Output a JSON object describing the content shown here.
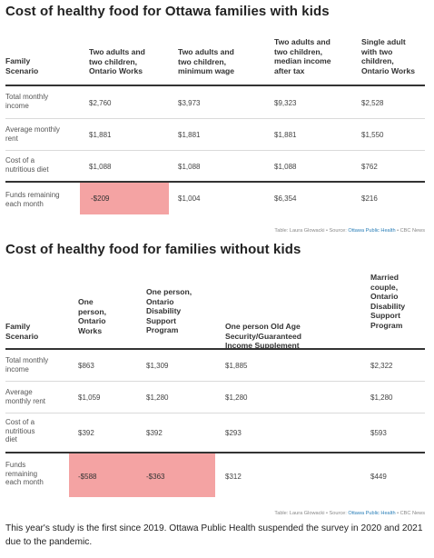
{
  "table1": {
    "title": "Cost of healthy food for Ottawa families with kids",
    "headers": [
      "Family\nScenario",
      "Two adults and\ntwo children,\nOntario Works",
      "Two adults and\ntwo children,\nminimum wage",
      "Two adults and\ntwo children,\nmedian income\nafter tax",
      "Single adult\nwith two\nchildren,\nOntario Works"
    ],
    "rows": [
      {
        "label": "Total monthly\nincome",
        "values": [
          "$2,760",
          "$3,973",
          "$9,323",
          "$2,528"
        ]
      },
      {
        "label": "Average monthly\nrent",
        "values": [
          "$1,881",
          "$1,881",
          "$1,881",
          "$1,550"
        ]
      },
      {
        "label": "Cost of a\nnutritious diet",
        "values": [
          "$1,088",
          "$1,088",
          "$1,088",
          "$762"
        ]
      },
      {
        "label": "Funds remaining\neach month",
        "values": [
          "-$209",
          "$1,004",
          "$6,354",
          "$216"
        ]
      }
    ],
    "source_prefix": "Table: Laura Glowacki • Source: ",
    "source_link": "Ottawa Public Health",
    "source_suffix": " • CBC News"
  },
  "table2": {
    "title": "Cost of healthy food for families without kids",
    "headers": [
      "Family\nScenario",
      "One\nperson,\nOntario\nWorks",
      "One person,\nOntario\nDisability\nSupport\nProgram",
      "One person Old Age\nSecurity/Guaranteed\nIncome Supplement",
      "Married\ncouple,\nOntario\nDisability\nSupport\nProgram"
    ],
    "rows": [
      {
        "label": "Total monthly\nincome",
        "values": [
          "$863",
          "$1,309",
          "$1,885",
          "$2,322"
        ]
      },
      {
        "label": "Average\nmonthly rent",
        "values": [
          "$1,059",
          "$1,280",
          "$1,280",
          "$1,280"
        ]
      },
      {
        "label": "Cost of a\nnutritious\ndiet",
        "values": [
          "$392",
          "$392",
          "$293",
          "$593"
        ]
      },
      {
        "label": "Funds\nremaining\neach month",
        "values": [
          "-$588",
          "-$363",
          "$312",
          "$449"
        ]
      }
    ],
    "source_prefix": "Table: Laura Glowacki • Source: ",
    "source_link": "Ottawa Public Health",
    "source_suffix": " • CBC News"
  },
  "footnote": "This year's study is the first since 2019. Ottawa Public Health suspended the survey in 2020 and 2021 due to the pandemic.",
  "colors": {
    "negative_highlight": "#f4a3a3",
    "source_link": "#2b7fb8"
  }
}
